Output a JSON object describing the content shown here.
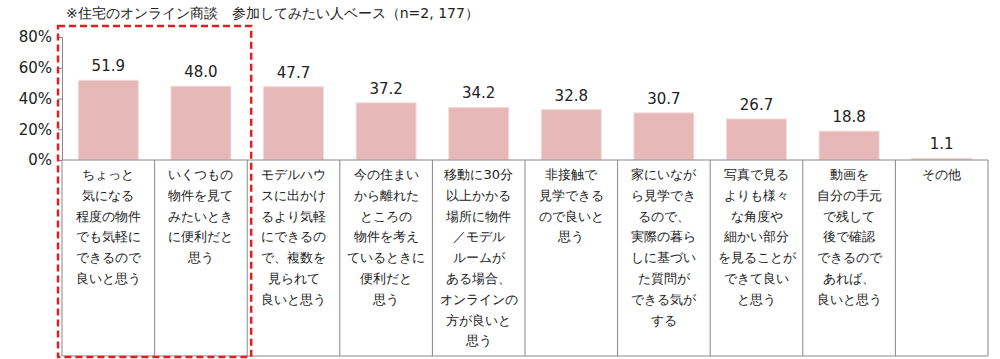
{
  "chart_data": {
    "type": "bar",
    "title": "※住宅のオンライン商談　参加してみたい人ベース（n=2, 177）",
    "categories": [
      "ちょっと\n気になる\n程度の物件\nでも気軽に\nできるので\n良いと思う",
      "いくつもの\n物件を見て\nみたいとき\nに便利だと\n思う",
      "モデルハウ\nスに出かけ\nるより気軽\nにできるの\nで、複数を\n見られて\n良いと思う",
      "今の住まい\nから離れた\nところの\n物件を考え\nているときに\n便利だと\n思う",
      "移動に30分\n以上かかる\n場所に物件\n／モデル\nルームが\nある場合、\nオンラインの\n方が良いと\n思う",
      "非接触で\n見学できる\nので良いと\n思う",
      "家にいなが\nら見学でき\nるので、\n実際の暮ら\nしに基づい\nた質問が\nできる気が\nする",
      "写真で見る\nよりも様々\nな角度や\n細かい部分\nを見ることが\nできて良い\nと思う",
      "動画を\n自分の手元\nで残して\n後で確認\nできるので\nあれば、\n良いと思う",
      "その他"
    ],
    "values": [
      51.9,
      48.0,
      47.7,
      37.2,
      34.2,
      32.8,
      30.7,
      26.7,
      18.8,
      1.1
    ],
    "value_labels": [
      "51.9",
      "48.0",
      "47.7",
      "37.2",
      "34.2",
      "32.8",
      "30.7",
      "26.7",
      "18.8",
      "1.1"
    ],
    "color": "#e6b9b8",
    "ylim": [
      0,
      80
    ],
    "yticks": [
      {
        "value": 0,
        "label": "0%"
      },
      {
        "value": 20,
        "label": "20%"
      },
      {
        "value": 40,
        "label": "40%"
      },
      {
        "value": 60,
        "label": "60%"
      },
      {
        "value": 80,
        "label": "80%"
      }
    ],
    "grid": false,
    "data_labels": true
  }
}
